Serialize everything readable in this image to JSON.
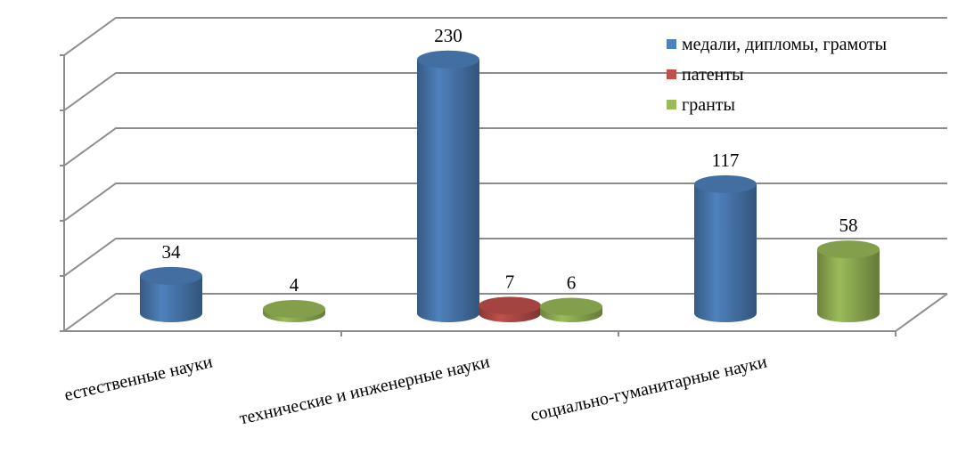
{
  "chart_data": {
    "type": "bar3d",
    "categories": [
      "естественные науки",
      "технические и инженерные науки",
      "социально-гуманитарные науки"
    ],
    "series": [
      {
        "name": "медали, дипломы, грамоты",
        "color": "#4f81bd",
        "values": [
          34,
          230,
          117
        ]
      },
      {
        "name": "патенты",
        "color": "#c0504d",
        "values": [
          null,
          7,
          null
        ]
      },
      {
        "name": "гранты",
        "color": "#9bbb59",
        "values": [
          4,
          6,
          58
        ]
      }
    ],
    "ylim": [
      0,
      250
    ],
    "yticks": [
      0,
      50,
      100,
      150,
      200,
      250
    ],
    "grid": true,
    "legend": "top-right"
  }
}
